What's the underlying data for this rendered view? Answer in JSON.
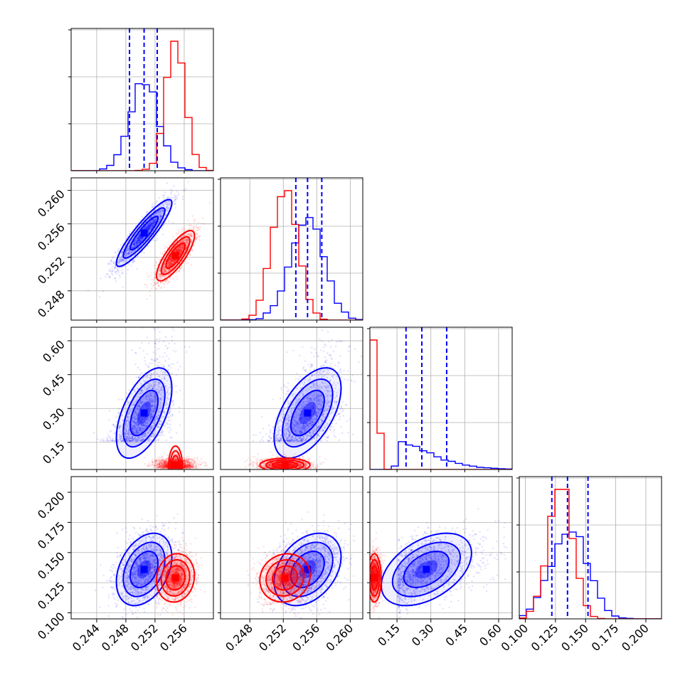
{
  "chart_data": {
    "type": "corner",
    "title": "",
    "grid": true,
    "parameters": [
      {
        "index": 0,
        "range": [
          0.2405,
          0.26
        ],
        "ticks": [
          0.244,
          0.248,
          0.252,
          0.256
        ],
        "tick_labels": [
          "0.244",
          "0.248",
          "0.252",
          "0.256"
        ]
      },
      {
        "index": 1,
        "range": [
          0.2445,
          0.2615
        ],
        "ticks": [
          0.248,
          0.252,
          0.256,
          0.26
        ],
        "tick_labels": [
          "0.248",
          "0.252",
          "0.256",
          "0.260"
        ]
      },
      {
        "index": 2,
        "range": [
          0.03,
          0.66
        ],
        "ticks": [
          0.15,
          0.3,
          0.45,
          0.6
        ],
        "tick_labels": [
          "0.15",
          "0.30",
          "0.45",
          "0.60"
        ]
      },
      {
        "index": 3,
        "range": [
          0.095,
          0.213
        ],
        "ticks": [
          0.1,
          0.125,
          0.15,
          0.175,
          0.2
        ],
        "tick_labels": [
          "0.100",
          "0.125",
          "0.150",
          "0.175",
          "0.200"
        ]
      }
    ],
    "series": [
      {
        "color": "#0000ff",
        "means": [
          0.2505,
          0.2549,
          0.28,
          0.136
        ],
        "sigmas": [
          0.0019,
          0.002,
          0.1,
          0.015
        ],
        "correlations": [
          [
            0,
            1,
            0.9
          ],
          [
            0,
            2,
            0.55
          ],
          [
            1,
            2,
            0.55
          ],
          [
            0,
            3,
            0.35
          ],
          [
            1,
            3,
            0.35
          ],
          [
            2,
            3,
            0.45
          ]
        ],
        "quantiles": [
          [
            0.2485,
            0.2505,
            0.2523
          ],
          [
            0.2535,
            0.2549,
            0.2566
          ],
          [
            0.19,
            0.26,
            0.37
          ],
          [
            0.122,
            0.135,
            0.152
          ]
        ]
      },
      {
        "color": "#ff0000",
        "means": [
          0.2548,
          0.2522,
          0.05,
          0.129
        ],
        "sigmas": [
          0.0013,
          0.0015,
          0.015,
          0.01
        ],
        "correlations": [
          [
            0,
            1,
            0.8
          ],
          [
            0,
            2,
            0.0
          ],
          [
            1,
            2,
            0.0
          ],
          [
            0,
            3,
            0.1
          ],
          [
            1,
            3,
            0.1
          ],
          [
            2,
            3,
            0.0
          ]
        ]
      }
    ],
    "quantile_lines": {
      "style": "dashed",
      "color": "#0000ff",
      "series": 0
    }
  }
}
